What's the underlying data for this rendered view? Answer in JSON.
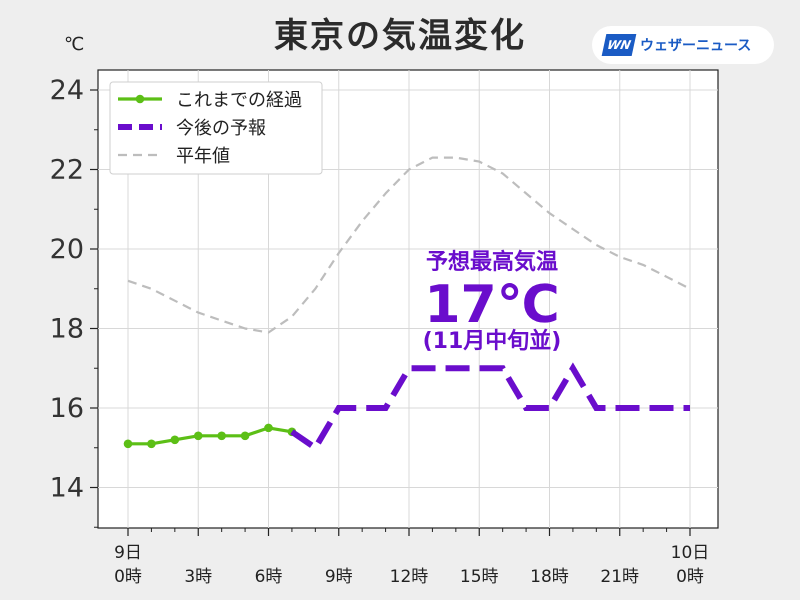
{
  "header": {
    "title": "東京の気温変化",
    "logo_mark": "WN",
    "logo_name": "ウェザーニュース"
  },
  "chart_data": {
    "type": "line",
    "ylabel": "℃",
    "ylim": [
      12.8,
      24.5
    ],
    "yticks": [
      14,
      16,
      18,
      20,
      22,
      24
    ],
    "xlim": [
      -1.2,
      25.2
    ],
    "x_ticks": [
      {
        "x": 0,
        "lines": [
          "9日",
          "0時"
        ]
      },
      {
        "x": 3,
        "lines": [
          "",
          "3時"
        ]
      },
      {
        "x": 6,
        "lines": [
          "",
          "6時"
        ]
      },
      {
        "x": 9,
        "lines": [
          "",
          "9時"
        ]
      },
      {
        "x": 12,
        "lines": [
          "",
          "12時"
        ]
      },
      {
        "x": 15,
        "lines": [
          "",
          "15時"
        ]
      },
      {
        "x": 18,
        "lines": [
          "",
          "18時"
        ]
      },
      {
        "x": 21,
        "lines": [
          "",
          "21時"
        ]
      },
      {
        "x": 24,
        "lines": [
          "10日",
          "0時"
        ]
      }
    ],
    "grid": true,
    "legend_position": "top-left",
    "series": [
      {
        "name": "これまでの経過",
        "color": "#5cbf16",
        "style": "solid-markers",
        "points": [
          [
            0,
            15.1
          ],
          [
            1,
            15.1
          ],
          [
            2,
            15.2
          ],
          [
            3,
            15.3
          ],
          [
            4,
            15.3
          ],
          [
            5,
            15.3
          ],
          [
            6,
            15.5
          ],
          [
            7,
            15.4
          ]
        ]
      },
      {
        "name": "今後の予報",
        "color": "#6a0dcc",
        "style": "dashed-thick",
        "points": [
          [
            7,
            15.4
          ],
          [
            8,
            15.0
          ],
          [
            9,
            16.0
          ],
          [
            10,
            16.0
          ],
          [
            11,
            16.0
          ],
          [
            12,
            17.0
          ],
          [
            13,
            17.0
          ],
          [
            14,
            17.0
          ],
          [
            15,
            17.0
          ],
          [
            16,
            17.0
          ],
          [
            17,
            16.0
          ],
          [
            18,
            16.0
          ],
          [
            19,
            17.0
          ],
          [
            20,
            16.0
          ],
          [
            21,
            16.0
          ],
          [
            22,
            16.0
          ],
          [
            23,
            16.0
          ],
          [
            24,
            16.0
          ]
        ]
      },
      {
        "name": "平年値",
        "color": "#bdbdbd",
        "style": "dashed-thin",
        "points": [
          [
            0,
            19.2
          ],
          [
            1,
            19.0
          ],
          [
            2,
            18.7
          ],
          [
            3,
            18.4
          ],
          [
            4,
            18.2
          ],
          [
            5,
            18.0
          ],
          [
            6,
            17.9
          ],
          [
            7,
            18.3
          ],
          [
            8,
            19.0
          ],
          [
            9,
            19.9
          ],
          [
            10,
            20.7
          ],
          [
            11,
            21.4
          ],
          [
            12,
            22.0
          ],
          [
            13,
            22.3
          ],
          [
            14,
            22.3
          ],
          [
            15,
            22.2
          ],
          [
            16,
            21.9
          ],
          [
            17,
            21.4
          ],
          [
            18,
            20.9
          ],
          [
            19,
            20.5
          ],
          [
            20,
            20.1
          ],
          [
            21,
            19.8
          ],
          [
            22,
            19.6
          ],
          [
            23,
            19.3
          ],
          [
            24,
            19.0
          ]
        ]
      }
    ],
    "annotation": {
      "label": "予想最高気温",
      "value": "17℃",
      "note": "(11月中旬並)",
      "color": "#6a0dcc"
    }
  }
}
